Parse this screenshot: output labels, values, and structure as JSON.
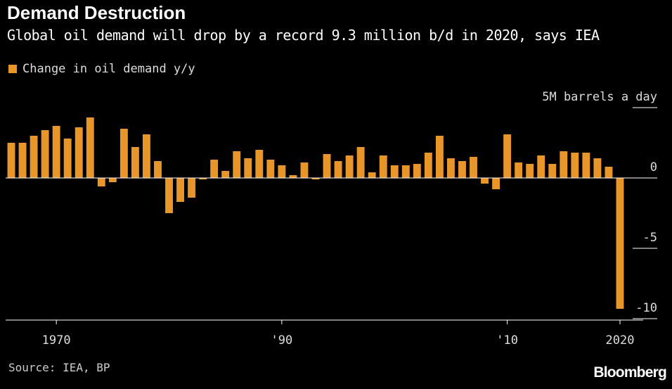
{
  "header": {
    "title": "Demand Destruction",
    "subtitle": "Global oil demand will drop by a record 9.3 million b/d in 2020, says IEA"
  },
  "legend": {
    "label": "Change in oil demand y/y"
  },
  "footer": {
    "source": "Source: IEA, BP",
    "brand": "Bloomberg"
  },
  "colors": {
    "bar": "#E8962A",
    "background": "#000000",
    "axis": "#FFFFFF"
  },
  "chart_data": {
    "type": "bar",
    "title": "Demand Destruction",
    "subtitle": "Global oil demand will drop by a record 9.3 million b/d in 2020, says IEA",
    "ylabel": "5M barrels a day",
    "xlabel": "",
    "ylim": [
      -10,
      5
    ],
    "yticks": [
      {
        "value": 5,
        "label": "5M barrels a day"
      },
      {
        "value": 0,
        "label": "0"
      },
      {
        "value": -5,
        "label": "-5"
      },
      {
        "value": -10,
        "label": "-10"
      }
    ],
    "xticks": [
      {
        "year": 1970,
        "label": "1970"
      },
      {
        "year": 1990,
        "label": "'90"
      },
      {
        "year": 2010,
        "label": "'10"
      },
      {
        "year": 2020,
        "label": "2020"
      }
    ],
    "legend_position": "top-left",
    "grid": false,
    "series": [
      {
        "name": "Change in oil demand y/y",
        "categories": [
          1966,
          1967,
          1968,
          1969,
          1970,
          1971,
          1972,
          1973,
          1974,
          1975,
          1976,
          1977,
          1978,
          1979,
          1980,
          1981,
          1982,
          1983,
          1984,
          1985,
          1986,
          1987,
          1988,
          1989,
          1990,
          1991,
          1992,
          1993,
          1994,
          1995,
          1996,
          1997,
          1998,
          1999,
          2000,
          2001,
          2002,
          2003,
          2004,
          2005,
          2006,
          2007,
          2008,
          2009,
          2010,
          2011,
          2012,
          2013,
          2014,
          2015,
          2016,
          2017,
          2018,
          2019,
          2020
        ],
        "values": [
          2.5,
          2.5,
          3.0,
          3.4,
          3.7,
          2.8,
          3.6,
          4.3,
          -0.6,
          -0.3,
          3.5,
          2.2,
          3.1,
          1.2,
          -2.5,
          -1.7,
          -1.4,
          -0.1,
          1.3,
          0.5,
          1.9,
          1.4,
          2.0,
          1.3,
          0.9,
          0.2,
          1.1,
          -0.1,
          1.7,
          1.2,
          1.6,
          2.2,
          0.4,
          1.6,
          0.9,
          0.9,
          1.0,
          1.8,
          3.0,
          1.4,
          1.2,
          1.5,
          -0.4,
          -0.8,
          3.1,
          1.1,
          1.0,
          1.6,
          1.0,
          1.9,
          1.8,
          1.8,
          1.4,
          0.8,
          -9.3
        ]
      }
    ]
  }
}
